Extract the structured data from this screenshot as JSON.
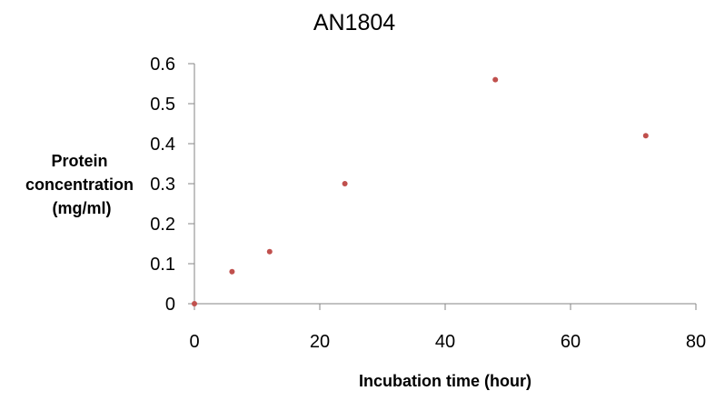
{
  "chart_data": {
    "type": "scatter",
    "title": "AN1804",
    "xlabel": "Incubation time (hour)",
    "ylabel_lines": [
      "Protein",
      "concentration",
      "(mg/ml)"
    ],
    "xlim": [
      0,
      80
    ],
    "ylim": [
      0,
      0.6
    ],
    "x_ticks": [
      0,
      20,
      40,
      60,
      80
    ],
    "y_ticks": [
      0,
      0.1,
      0.2,
      0.3,
      0.4,
      0.5,
      0.6
    ],
    "x_tick_labels": [
      "0",
      "20",
      "40",
      "60",
      "80"
    ],
    "y_tick_labels": [
      "0",
      "0.1",
      "0.2",
      "0.3",
      "0.4",
      "0.5",
      "0.6"
    ],
    "grid": false,
    "legend": "none",
    "marker_color": "#c0504d",
    "axis_color": "#868686",
    "series": [
      {
        "x": [
          0,
          6,
          12,
          24,
          48,
          72
        ],
        "y": [
          0,
          0.08,
          0.13,
          0.3,
          0.56,
          0.42
        ]
      }
    ]
  }
}
